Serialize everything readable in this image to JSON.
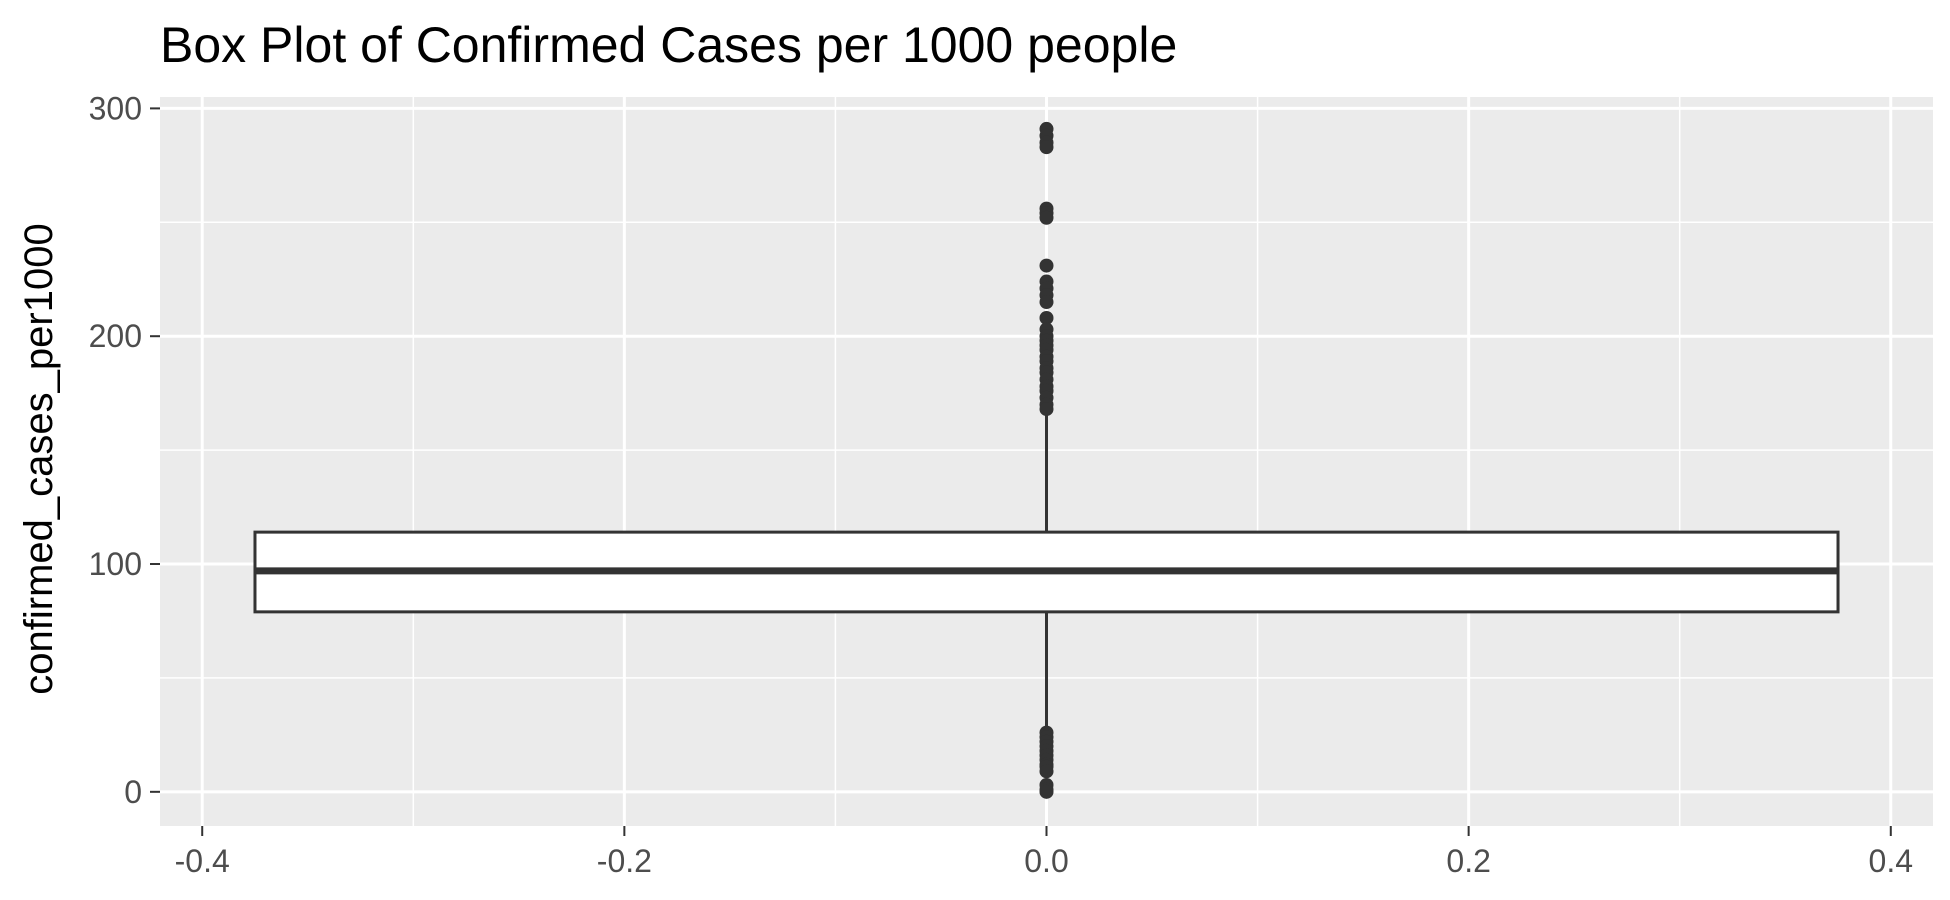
{
  "chart_data": {
    "type": "box",
    "title": "Box Plot of Confirmed Cases per 1000 people",
    "xlabel": "",
    "ylabel": "confirmed_cases_per1000",
    "xlim": [
      -0.42,
      0.42
    ],
    "ylim": [
      -15,
      305
    ],
    "x_ticks": [
      {
        "value": -0.4,
        "label": "-0.4"
      },
      {
        "value": -0.2,
        "label": "-0.2"
      },
      {
        "value": 0.0,
        "label": "0.0"
      },
      {
        "value": 0.2,
        "label": "0.2"
      },
      {
        "value": 0.4,
        "label": "0.4"
      }
    ],
    "y_ticks": [
      {
        "value": 0,
        "label": "0"
      },
      {
        "value": 100,
        "label": "100"
      },
      {
        "value": 200,
        "label": "200"
      },
      {
        "value": 300,
        "label": "300"
      }
    ],
    "x_minor_grid": [
      -0.3,
      -0.1,
      0.1,
      0.3
    ],
    "y_minor_grid": [
      50,
      150,
      250
    ],
    "grid": true,
    "colors": {
      "panel": "#ebebeb",
      "grid": "#ffffff",
      "box_fill": "#ffffff",
      "stroke": "#333333"
    },
    "box": {
      "x_center": 0.0,
      "x_min": -0.375,
      "x_max": 0.375,
      "q1": 79,
      "median": 97,
      "q3": 114,
      "whisker_low": 27,
      "whisker_high": 166,
      "outliers": [
        291,
        288,
        285,
        283,
        256,
        254,
        252,
        231,
        224,
        221,
        218,
        215,
        208,
        203,
        200,
        198,
        196,
        194,
        191,
        189,
        186,
        184,
        181,
        178,
        176,
        173,
        170,
        168,
        26,
        24,
        22,
        20,
        18,
        16,
        14,
        12,
        11,
        9,
        3,
        1,
        0
      ]
    }
  }
}
